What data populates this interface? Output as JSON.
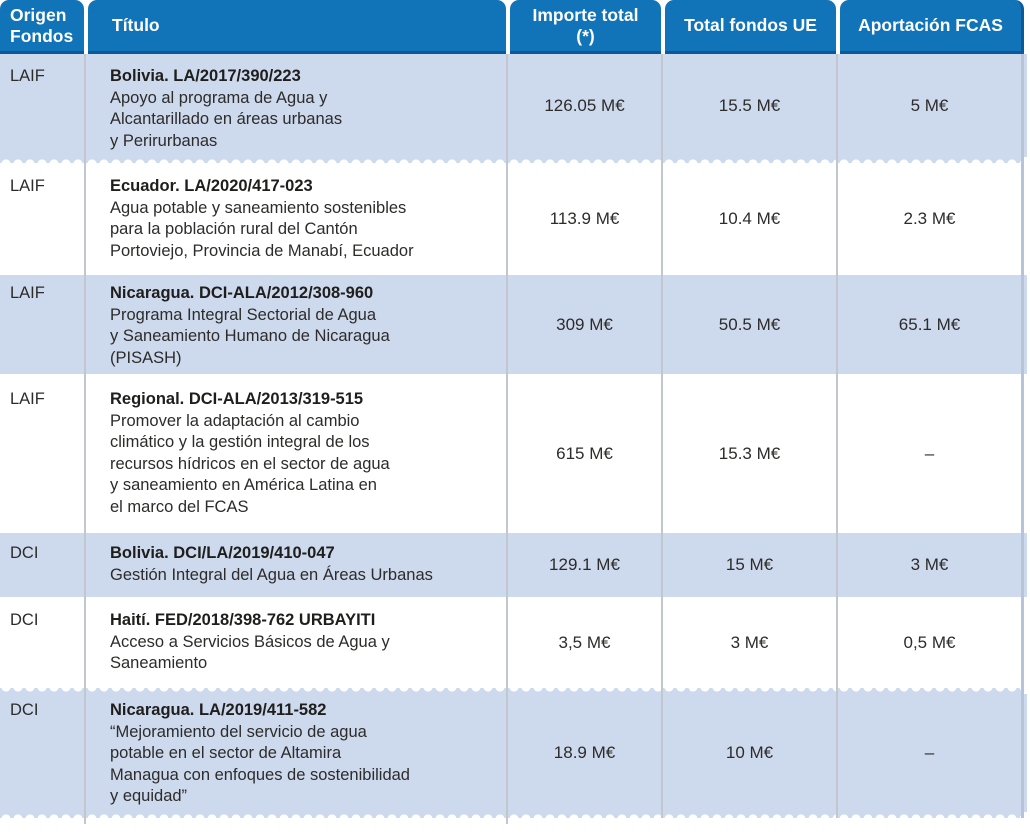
{
  "colors": {
    "header_bg": "#1173b8",
    "header_edge": "#0b5a97",
    "row_alt_blue": "#cdd9ed",
    "separator": "#c2c7ce",
    "text": "#2d2c2a"
  },
  "header": {
    "col_origen": "Origen\nFondos",
    "col_titulo": "Título",
    "col_importe": "Importe total\n(*)",
    "col_ue": "Total fondos UE",
    "col_fcas": "Aportación FCAS"
  },
  "rows": [
    {
      "origen": "LAIF",
      "titulo": "Bolivia. LA/2017/390/223",
      "desc": "Apoyo al programa de Agua y\nAlcantarillado en áreas urbanas\ny Perirurbanas",
      "importe": "126.05 M€",
      "fondos_ue": "15.5 M€",
      "fcas": "5 M€"
    },
    {
      "origen": "LAIF",
      "titulo": "Ecuador. LA/2020/417-023",
      "desc": "Agua potable y saneamiento sostenibles\npara la población rural del Cantón\nPortoviejo, Provincia de Manabí, Ecuador",
      "importe": "113.9 M€",
      "fondos_ue": "10.4 M€",
      "fcas": "2.3 M€"
    },
    {
      "origen": "LAIF",
      "titulo": "Nicaragua. DCI-ALA/2012/308-960",
      "desc": "Programa Integral Sectorial de Agua\ny Saneamiento Humano de Nicaragua\n(PISASH)",
      "importe": "309 M€",
      "fondos_ue": "50.5 M€",
      "fcas": "65.1 M€"
    },
    {
      "origen": "LAIF",
      "titulo": "Regional. DCI-ALA/2013/319-515",
      "desc": "Promover la adaptación al cambio\nclimático y la gestión integral de los\nrecursos hídricos en el sector de agua\ny saneamiento en América Latina en\nel marco del FCAS",
      "importe": "615 M€",
      "fondos_ue": "15.3 M€",
      "fcas": "–"
    },
    {
      "origen": "DCI",
      "titulo": "Bolivia. DCI/LA/2019/410-047",
      "desc": "Gestión Integral del Agua en Áreas Urbanas",
      "importe": "129.1 M€",
      "fondos_ue": "15 M€",
      "fcas": "3 M€"
    },
    {
      "origen": "DCI",
      "titulo": "Haití. FED/2018/398-762 URBAYITI",
      "desc": "Acceso a Servicios Básicos de Agua y\nSaneamiento",
      "importe": "3,5 M€",
      "fondos_ue": "3 M€",
      "fcas": "0,5 M€"
    },
    {
      "origen": "DCI",
      "titulo": "Nicaragua. LA/2019/411-582",
      "desc": "“Mejoramiento del servicio de agua\npotable en el sector de Altamira\nManagua con enfoques de sostenibilidad\ny equidad”",
      "importe": "18.9 M€",
      "fondos_ue": "10 M€",
      "fcas": "–"
    }
  ]
}
